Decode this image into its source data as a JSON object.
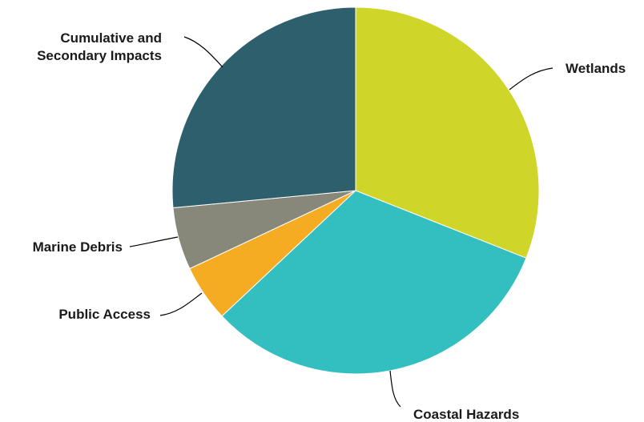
{
  "chart_data": {
    "type": "pie",
    "title": "",
    "categories": [
      "Wetlands",
      "Coastal Hazards",
      "Public Access",
      "Marine Debris",
      "Cumulative and Secondary Impacts"
    ],
    "values": [
      31,
      32,
      5,
      5.5,
      26.5
    ],
    "unit": "percent",
    "start": "12 o'clock",
    "direction": "clockwise",
    "colors": [
      "#cfd629",
      "#33bec0",
      "#f5ac22",
      "#87877a",
      "#2e5f6d"
    ],
    "legend": "none (direct labels with leader lines)",
    "slices": [
      {
        "label": "Wetlands",
        "label_lines": [
          "Wetlands"
        ],
        "value": 31,
        "color": "#cfd629"
      },
      {
        "label": "Coastal Hazards",
        "label_lines": [
          "Coastal Hazards"
        ],
        "value": 32,
        "color": "#33bec0"
      },
      {
        "label": "Public Access",
        "label_lines": [
          "Public Access"
        ],
        "value": 5,
        "color": "#f5ac22"
      },
      {
        "label": "Marine Debris",
        "label_lines": [
          "Marine Debris"
        ],
        "value": 5.5,
        "color": "#87877a"
      },
      {
        "label": "Cumulative and Secondary Impacts",
        "label_lines": [
          "Cumulative and",
          "Secondary Impacts"
        ],
        "value": 26.5,
        "color": "#2e5f6d"
      }
    ]
  }
}
